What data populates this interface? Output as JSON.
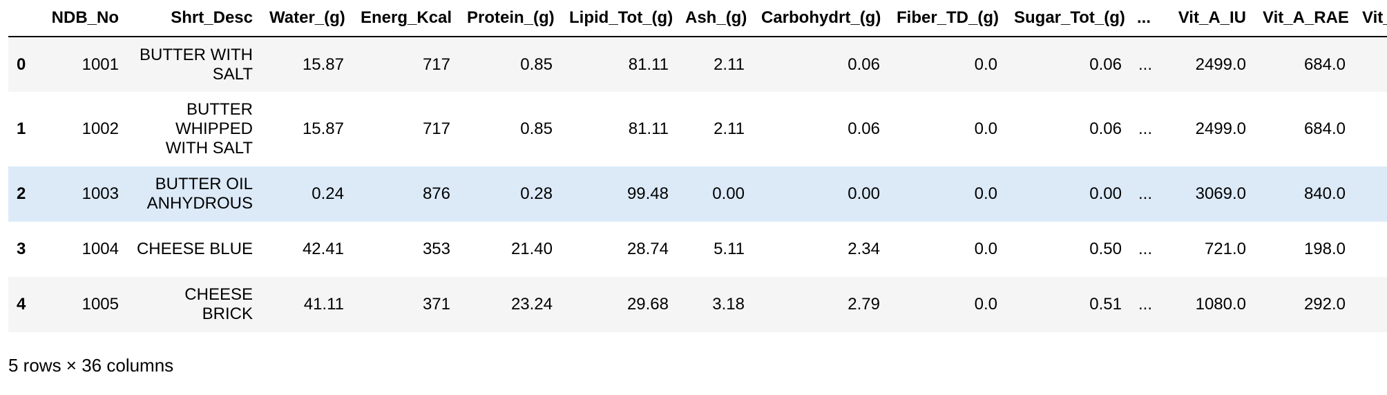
{
  "table": {
    "columns": [
      "",
      "NDB_No",
      "Shrt_Desc",
      "Water_(g)",
      "Energ_Kcal",
      "Protein_(g)",
      "Lipid_Tot_(g)",
      "Ash_(g)",
      "Carbohydrt_(g)",
      "Fiber_TD_(g)",
      "Sugar_Tot_(g)",
      "...",
      "Vit_A_IU",
      "Vit_A_RAE",
      "Vit_E_"
    ],
    "rows": [
      [
        "0",
        "1001",
        "BUTTER WITH SALT",
        "15.87",
        "717",
        "0.85",
        "81.11",
        "2.11",
        "0.06",
        "0.0",
        "0.06",
        "...",
        "2499.0",
        "684.0",
        ""
      ],
      [
        "1",
        "1002",
        "BUTTER WHIPPED WITH SALT",
        "15.87",
        "717",
        "0.85",
        "81.11",
        "2.11",
        "0.06",
        "0.0",
        "0.06",
        "...",
        "2499.0",
        "684.0",
        ""
      ],
      [
        "2",
        "1003",
        "BUTTER OIL ANHYDROUS",
        "0.24",
        "876",
        "0.28",
        "99.48",
        "0.00",
        "0.00",
        "0.0",
        "0.00",
        "...",
        "3069.0",
        "840.0",
        ""
      ],
      [
        "3",
        "1004",
        "CHEESE BLUE",
        "42.41",
        "353",
        "21.40",
        "28.74",
        "5.11",
        "2.34",
        "0.0",
        "0.50",
        "...",
        "721.0",
        "198.0",
        ""
      ],
      [
        "4",
        "1005",
        "CHEESE BRICK",
        "41.11",
        "371",
        "23.24",
        "29.68",
        "3.18",
        "2.79",
        "0.0",
        "0.51",
        "...",
        "1080.0",
        "292.0",
        ""
      ]
    ],
    "hovered_row_index": 2
  },
  "footer": {
    "shape_text": "5 rows × 36 columns"
  },
  "colors": {
    "stripe": "#f5f5f5",
    "hover": "#dceaf8",
    "header_rule": "#000000"
  }
}
